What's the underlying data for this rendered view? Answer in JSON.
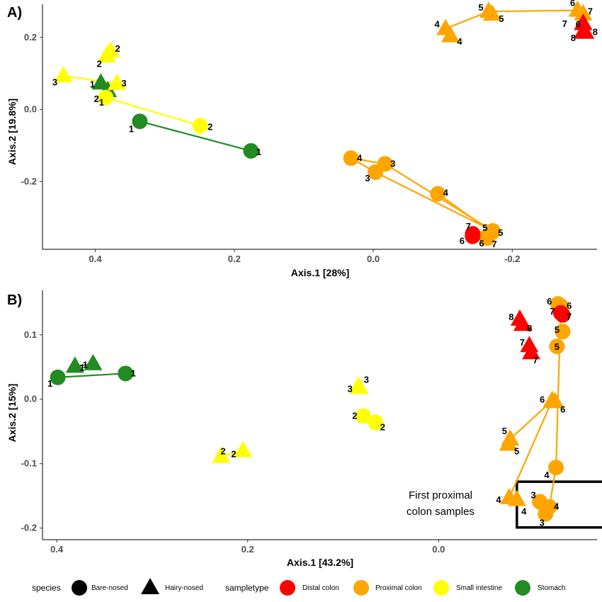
{
  "colors": {
    "Distal colon": "#ff0000",
    "Proximal colon": "#ffa500",
    "Small intestine": "#ffff00",
    "Stomach": "#228b22"
  },
  "chart_data": [
    {
      "type": "scatter",
      "panel_label": "A)",
      "xlabel": "Axis.1   [28%]",
      "ylabel": "Axis.2   [19.8%]",
      "x_reversed": true,
      "xlim": [
        0.476,
        -0.322
      ],
      "ylim": [
        -0.388,
        0.292
      ],
      "xticks": [
        0.4,
        0.2,
        0.0,
        -0.2
      ],
      "xtick_labels": [
        "0.4",
        "0.2",
        "0.0",
        "-0.2"
      ],
      "yticks": [
        0.2,
        0.0,
        -0.2
      ],
      "ytick_labels": [
        "0.2",
        "0.0",
        "-0.2"
      ],
      "grid": false,
      "points": [
        {
          "label": "1",
          "x": 0.336,
          "y": -0.033,
          "species": "Bare-nosed",
          "sampletype": "Stomach",
          "dx": -12,
          "dy": 10
        },
        {
          "label": "1",
          "x": 0.176,
          "y": -0.115,
          "species": "Bare-nosed",
          "sampletype": "Stomach",
          "dx": 11,
          "dy": 1
        },
        {
          "label": "1",
          "x": 0.392,
          "y": 0.073,
          "species": "Hairy-nosed",
          "sampletype": "Stomach",
          "dx": -12,
          "dy": 1
        },
        {
          "label": "1",
          "x": 0.382,
          "y": 0.052,
          "species": "Hairy-nosed",
          "sampletype": "Stomach",
          "dx": -9,
          "dy": 16
        },
        {
          "label": "2",
          "x": 0.249,
          "y": -0.045,
          "species": "Bare-nosed",
          "sampletype": "Small intestine",
          "dx": 14,
          "dy": 1
        },
        {
          "label": "2",
          "x": 0.385,
          "y": 0.033,
          "species": "Bare-nosed",
          "sampletype": "Small intestine",
          "dx": -13,
          "dy": 1
        },
        {
          "label": "3",
          "x": 0.446,
          "y": 0.093,
          "species": "Hairy-nosed",
          "sampletype": "Small intestine",
          "dx": -12,
          "dy": 8
        },
        {
          "label": "3",
          "x": 0.369,
          "y": 0.072,
          "species": "Hairy-nosed",
          "sampletype": "Small intestine",
          "dx": 10,
          "dy": -1
        },
        {
          "label": "2",
          "x": 0.378,
          "y": 0.162,
          "species": "Hairy-nosed",
          "sampletype": "Small intestine",
          "dx": 10,
          "dy": -4
        },
        {
          "label": "2",
          "x": 0.384,
          "y": 0.148,
          "species": "Hairy-nosed",
          "sampletype": "Small intestine",
          "dx": -10,
          "dy": 10
        },
        {
          "label": "4",
          "x": 0.032,
          "y": -0.135,
          "species": "Bare-nosed",
          "sampletype": "Proximal colon",
          "dx": 12,
          "dy": -1
        },
        {
          "label": "3",
          "x": -0.017,
          "y": -0.151,
          "species": "Bare-nosed",
          "sampletype": "Proximal colon",
          "dx": 11,
          "dy": -1
        },
        {
          "label": "3",
          "x": -0.003,
          "y": -0.174,
          "species": "Bare-nosed",
          "sampletype": "Proximal colon",
          "dx": -11,
          "dy": 8
        },
        {
          "label": "4",
          "x": -0.093,
          "y": -0.234,
          "species": "Bare-nosed",
          "sampletype": "Proximal colon",
          "dx": 11,
          "dy": -2
        },
        {
          "label": "5",
          "x": -0.172,
          "y": -0.337,
          "species": "Bare-nosed",
          "sampletype": "Proximal colon",
          "dx": -11,
          "dy": -5
        },
        {
          "label": "5",
          "x": -0.171,
          "y": -0.341,
          "species": "Bare-nosed",
          "sampletype": "Proximal colon",
          "dx": 12,
          "dy": 0
        },
        {
          "label": "6",
          "x": -0.164,
          "y": -0.357,
          "species": "Bare-nosed",
          "sampletype": "Proximal colon",
          "dx": -8,
          "dy": 7
        },
        {
          "label": "7",
          "x": -0.163,
          "y": -0.353,
          "species": "Bare-nosed",
          "sampletype": "Proximal colon",
          "dx": 11,
          "dy": 10
        },
        {
          "label": "7",
          "x": -0.143,
          "y": -0.345,
          "species": "Bare-nosed",
          "sampletype": "Distal colon",
          "dx": -6,
          "dy": -11
        },
        {
          "label": "6",
          "x": -0.143,
          "y": -0.352,
          "species": "Bare-nosed",
          "sampletype": "Distal colon",
          "dx": -15,
          "dy": 6
        },
        {
          "label": "4",
          "x": -0.104,
          "y": 0.224,
          "species": "Hairy-nosed",
          "sampletype": "Proximal colon",
          "dx": -12,
          "dy": -7
        },
        {
          "label": "4",
          "x": -0.111,
          "y": 0.204,
          "species": "Hairy-nosed",
          "sampletype": "Proximal colon",
          "dx": 13,
          "dy": 7
        },
        {
          "label": "5",
          "x": -0.166,
          "y": 0.272,
          "species": "Hairy-nosed",
          "sampletype": "Proximal colon",
          "dx": -11,
          "dy": -6
        },
        {
          "label": "5",
          "x": -0.171,
          "y": 0.264,
          "species": "Hairy-nosed",
          "sampletype": "Proximal colon",
          "dx": 13,
          "dy": 6
        },
        {
          "label": "6",
          "x": -0.294,
          "y": 0.275,
          "species": "Hairy-nosed",
          "sampletype": "Proximal colon",
          "dx": -7,
          "dy": -11
        },
        {
          "label": "7",
          "x": -0.302,
          "y": 0.265,
          "species": "Hairy-nosed",
          "sampletype": "Proximal colon",
          "dx": 10,
          "dy": -4
        },
        {
          "label": "7",
          "x": -0.302,
          "y": 0.239,
          "species": "Hairy-nosed",
          "sampletype": "Distal colon",
          "dx": -26,
          "dy": 0
        },
        {
          "label": "6",
          "x": -0.302,
          "y": 0.238,
          "species": "Hairy-nosed",
          "sampletype": "Distal colon",
          "dx": -7,
          "dy": 0
        },
        {
          "label": "8",
          "x": -0.302,
          "y": 0.215,
          "species": "Hairy-nosed",
          "sampletype": "Distal colon",
          "dx": -14,
          "dy": 8
        },
        {
          "label": "8",
          "x": -0.305,
          "y": 0.214,
          "species": "Hairy-nosed",
          "sampletype": "Distal colon",
          "dx": 14,
          "dy": -1
        }
      ],
      "links": [
        {
          "a": 0,
          "b": 1
        },
        {
          "a": 2,
          "b": 3
        },
        {
          "a": 4,
          "b": 5
        },
        {
          "a": 6,
          "b": 7
        },
        {
          "a": 8,
          "b": 9
        },
        {
          "a": 10,
          "b": 11
        },
        {
          "a": 10,
          "b": 12
        },
        {
          "a": 11,
          "b": 14
        },
        {
          "a": 12,
          "b": 14
        },
        {
          "a": 13,
          "b": 15
        },
        {
          "a": 16,
          "b": 17
        },
        {
          "a": 18,
          "b": 19
        },
        {
          "a": 20,
          "b": 21
        },
        {
          "a": 20,
          "b": 22
        },
        {
          "a": 22,
          "b": 24
        },
        {
          "a": 25,
          "b": 26
        },
        {
          "a": 27,
          "b": 28
        },
        {
          "a": 28,
          "b": 29
        }
      ]
    },
    {
      "type": "scatter",
      "panel_label": "B)",
      "xlabel": "Axis.1   [43.2%]",
      "ylabel": "Axis.2   [15%]",
      "x_reversed": true,
      "xlim": [
        0.415,
        -0.166
      ],
      "ylim": [
        -0.218,
        0.169
      ],
      "xticks": [
        0.4,
        0.2,
        0.0
      ],
      "xtick_labels": [
        "0.4",
        "0.2",
        "0.0"
      ],
      "yticks": [
        0.1,
        0.0,
        -0.1,
        -0.2
      ],
      "ytick_labels": [
        "0.1",
        "0.0",
        "-0.1",
        "-0.2"
      ],
      "grid": false,
      "points": [
        {
          "label": "1",
          "x": 0.399,
          "y": 0.034,
          "species": "Bare-nosed",
          "sampletype": "Stomach",
          "dx": -11,
          "dy": 8
        },
        {
          "label": "1",
          "x": 0.328,
          "y": 0.04,
          "species": "Bare-nosed",
          "sampletype": "Stomach",
          "dx": 11,
          "dy": -1
        },
        {
          "label": "1",
          "x": 0.381,
          "y": 0.051,
          "species": "Hairy-nosed",
          "sampletype": "Stomach",
          "dx": 10,
          "dy": 1
        },
        {
          "label": "1",
          "x": 0.362,
          "y": 0.055,
          "species": "Hairy-nosed",
          "sampletype": "Stomach",
          "dx": -11,
          "dy": 1
        },
        {
          "label": "2",
          "x": 0.228,
          "y": -0.089,
          "species": "Hairy-nosed",
          "sampletype": "Small intestine",
          "dx": 3,
          "dy": -8
        },
        {
          "label": "2",
          "x": 0.205,
          "y": -0.08,
          "species": "Hairy-nosed",
          "sampletype": "Small intestine",
          "dx": -13,
          "dy": 4
        },
        {
          "label": "3",
          "x": 0.084,
          "y": 0.02,
          "species": "Hairy-nosed",
          "sampletype": "Small intestine",
          "dx": -12,
          "dy": 3
        },
        {
          "label": "3",
          "x": 0.083,
          "y": 0.018,
          "species": "Hairy-nosed",
          "sampletype": "Small intestine",
          "dx": 10,
          "dy": -12
        },
        {
          "label": "2",
          "x": 0.079,
          "y": -0.026,
          "species": "Bare-nosed",
          "sampletype": "Small intestine",
          "dx": -12,
          "dy": -1
        },
        {
          "label": "2",
          "x": 0.066,
          "y": -0.036,
          "species": "Bare-nosed",
          "sampletype": "Small intestine",
          "dx": 10,
          "dy": 6
        },
        {
          "label": "8",
          "x": -0.085,
          "y": 0.124,
          "species": "Hairy-nosed",
          "sampletype": "Distal colon",
          "dx": -12,
          "dy": -4
        },
        {
          "label": "8",
          "x": -0.088,
          "y": 0.116,
          "species": "Hairy-nosed",
          "sampletype": "Distal colon",
          "dx": 10,
          "dy": 5
        },
        {
          "label": "7",
          "x": -0.095,
          "y": 0.083,
          "species": "Hairy-nosed",
          "sampletype": "Distal colon",
          "dx": -10,
          "dy": -5
        },
        {
          "label": "7",
          "x": -0.097,
          "y": 0.072,
          "species": "Hairy-nosed",
          "sampletype": "Distal colon",
          "dx": 6,
          "dy": 10
        },
        {
          "label": "6",
          "x": -0.125,
          "y": 0.148,
          "species": "Bare-nosed",
          "sampletype": "Proximal colon",
          "dx": -12,
          "dy": -4
        },
        {
          "label": "6",
          "x": -0.128,
          "y": 0.145,
          "species": "Bare-nosed",
          "sampletype": "Proximal colon",
          "dx": 12,
          "dy": -1
        },
        {
          "label": "7",
          "x": -0.128,
          "y": 0.134,
          "species": "Bare-nosed",
          "sampletype": "Distal colon",
          "dx": -12,
          "dy": -3
        },
        {
          "label": "7",
          "x": -0.13,
          "y": 0.131,
          "species": "Bare-nosed",
          "sampletype": "Distal colon",
          "dx": 9,
          "dy": 2
        },
        {
          "label": "5",
          "x": -0.13,
          "y": 0.105,
          "species": "Bare-nosed",
          "sampletype": "Proximal colon",
          "dx": -8,
          "dy": -3
        },
        {
          "label": "5",
          "x": -0.124,
          "y": 0.082,
          "species": "Bare-nosed",
          "sampletype": "Proximal colon",
          "dx": 0,
          "dy": 0
        },
        {
          "label": "6",
          "x": -0.119,
          "y": -0.002,
          "species": "Hairy-nosed",
          "sampletype": "Proximal colon",
          "dx": -14,
          "dy": -2
        },
        {
          "label": "6",
          "x": -0.122,
          "y": -0.004,
          "species": "Hairy-nosed",
          "sampletype": "Proximal colon",
          "dx": 11,
          "dy": 10
        },
        {
          "label": "5",
          "x": -0.075,
          "y": -0.062,
          "species": "Hairy-nosed",
          "sampletype": "Proximal colon",
          "dx": -8,
          "dy": -12
        },
        {
          "label": "5",
          "x": -0.073,
          "y": -0.07,
          "species": "Hairy-nosed",
          "sampletype": "Proximal colon",
          "dx": 12,
          "dy": 9
        },
        {
          "label": "4",
          "x": -0.123,
          "y": -0.106,
          "species": "Bare-nosed",
          "sampletype": "Proximal colon",
          "dx": -13,
          "dy": 10
        },
        {
          "label": "4",
          "x": -0.074,
          "y": -0.153,
          "species": "Hairy-nosed",
          "sampletype": "Proximal colon",
          "dx": -15,
          "dy": 2
        },
        {
          "label": "4",
          "x": -0.082,
          "y": -0.156,
          "species": "Hairy-nosed",
          "sampletype": "Proximal colon",
          "dx": 10,
          "dy": 16
        },
        {
          "label": "3",
          "x": -0.106,
          "y": -0.159,
          "species": "Bare-nosed",
          "sampletype": "Proximal colon",
          "dx": -9,
          "dy": -10
        },
        {
          "label": "4",
          "x": -0.116,
          "y": -0.167,
          "species": "Bare-nosed",
          "sampletype": "Proximal colon",
          "dx": 10,
          "dy": -1
        },
        {
          "label": "3",
          "x": -0.112,
          "y": -0.178,
          "species": "Bare-nosed",
          "sampletype": "Proximal colon",
          "dx": -5,
          "dy": 12
        }
      ],
      "links": [
        {
          "a": 0,
          "b": 1
        },
        {
          "a": 2,
          "b": 3
        },
        {
          "a": 4,
          "b": 5
        },
        {
          "a": 6,
          "b": 7
        },
        {
          "a": 8,
          "b": 9
        },
        {
          "a": 10,
          "b": 11
        },
        {
          "a": 12,
          "b": 13
        },
        {
          "a": 14,
          "b": 15
        },
        {
          "a": 16,
          "b": 17
        },
        {
          "a": 15,
          "b": 24
        },
        {
          "a": 20,
          "b": 21
        },
        {
          "a": 20,
          "b": 22
        },
        {
          "a": 20,
          "b": 25
        },
        {
          "a": 22,
          "b": 23
        },
        {
          "a": 25,
          "b": 26
        },
        {
          "a": 27,
          "b": 28
        },
        {
          "a": 28,
          "b": 29
        },
        {
          "a": 24,
          "b": 28
        }
      ],
      "annotation": {
        "text_line1": "First proximal",
        "text_line2": "colon samples",
        "box_x": [
          -0.082,
          -0.189
        ],
        "box_y": [
          -0.128,
          -0.199
        ]
      }
    }
  ],
  "legend": {
    "species_title": "species",
    "species": [
      {
        "label": "Bare-nosed",
        "shape": "circle"
      },
      {
        "label": "Hairy-nosed",
        "shape": "triangle"
      }
    ],
    "sampletype_title": "sampletype",
    "sampletype": [
      {
        "label": "Distal colon",
        "color": "#ff0000"
      },
      {
        "label": "Proximal colon",
        "color": "#ffa500"
      },
      {
        "label": "Small intestine",
        "color": "#ffff00"
      },
      {
        "label": "Stomach",
        "color": "#228b22"
      }
    ]
  }
}
